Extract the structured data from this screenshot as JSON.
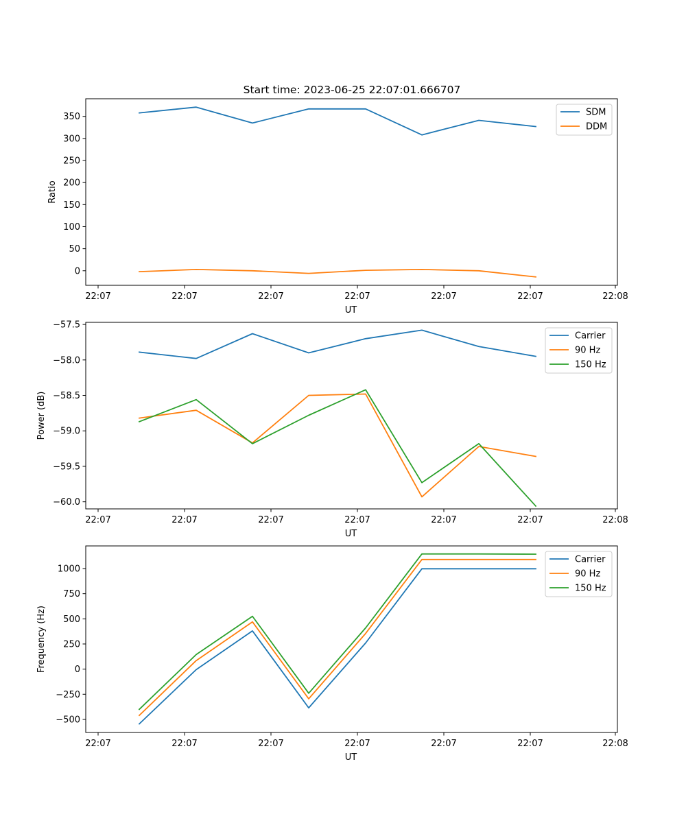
{
  "figure": {
    "title": "Start time: 2023-06-25 22:07:01.666707"
  },
  "chart_data": [
    {
      "type": "line",
      "xlabel": "UT",
      "ylabel": "Ratio",
      "x_tick_labels": [
        "22:07",
        "22:07",
        "22:07",
        "22:07",
        "22:07",
        "22:07",
        "22:08"
      ],
      "ylim": [
        -33,
        390
      ],
      "y_ticks": [
        0,
        50,
        100,
        150,
        200,
        250,
        300,
        350
      ],
      "legend_position": "upper right",
      "series": [
        {
          "name": "SDM",
          "color": "#1f77b4",
          "values": [
            358,
            371,
            335,
            367,
            367,
            308,
            341,
            327
          ]
        },
        {
          "name": "DDM",
          "color": "#ff7f0e",
          "values": [
            -2,
            3,
            0,
            -6,
            1,
            3,
            0,
            -14
          ]
        }
      ]
    },
    {
      "type": "line",
      "xlabel": "UT",
      "ylabel": "Power (dB)",
      "x_tick_labels": [
        "22:07",
        "22:07",
        "22:07",
        "22:07",
        "22:07",
        "22:07",
        "22:08"
      ],
      "ylim": [
        -60.1,
        -57.47
      ],
      "y_ticks": [
        -60.0,
        -59.5,
        -59.0,
        -58.5,
        -58.0,
        -57.5
      ],
      "y_tick_labels": [
        "−60.0",
        "−59.5",
        "−59.0",
        "−58.5",
        "−58.0",
        "−57.5"
      ],
      "legend_position": "upper right",
      "series": [
        {
          "name": "Carrier",
          "color": "#1f77b4",
          "values": [
            -57.89,
            -57.98,
            -57.63,
            -57.9,
            -57.7,
            -57.58,
            -57.81,
            -57.95
          ]
        },
        {
          "name": "90 Hz",
          "color": "#ff7f0e",
          "values": [
            -58.82,
            -58.71,
            -59.17,
            -58.5,
            -58.48,
            -59.93,
            -59.22,
            -59.36
          ]
        },
        {
          "name": "150 Hz",
          "color": "#2ca02c",
          "values": [
            -58.87,
            -58.56,
            -59.18,
            -58.78,
            -58.42,
            -59.73,
            -59.18,
            -60.06
          ]
        }
      ]
    },
    {
      "type": "line",
      "xlabel": "UT",
      "ylabel": "Frequency (Hz)",
      "x_tick_labels": [
        "22:07",
        "22:07",
        "22:07",
        "22:07",
        "22:07",
        "22:07",
        "22:08"
      ],
      "ylim": [
        -630,
        1225
      ],
      "y_ticks": [
        -500,
        -250,
        0,
        250,
        500,
        750,
        1000
      ],
      "y_tick_labels": [
        "−500",
        "−250",
        "0",
        "250",
        "500",
        "750",
        "1000"
      ],
      "legend_position": "upper right",
      "series": [
        {
          "name": "Carrier",
          "color": "#1f77b4",
          "values": [
            -545,
            -5,
            380,
            -385,
            260,
            998,
            998,
            998
          ]
        },
        {
          "name": "90 Hz",
          "color": "#ff7f0e",
          "values": [
            -460,
            85,
            470,
            -295,
            355,
            1090,
            1090,
            1090
          ]
        },
        {
          "name": "150 Hz",
          "color": "#2ca02c",
          "values": [
            -400,
            145,
            525,
            -240,
            410,
            1145,
            1145,
            1143
          ]
        }
      ]
    }
  ]
}
